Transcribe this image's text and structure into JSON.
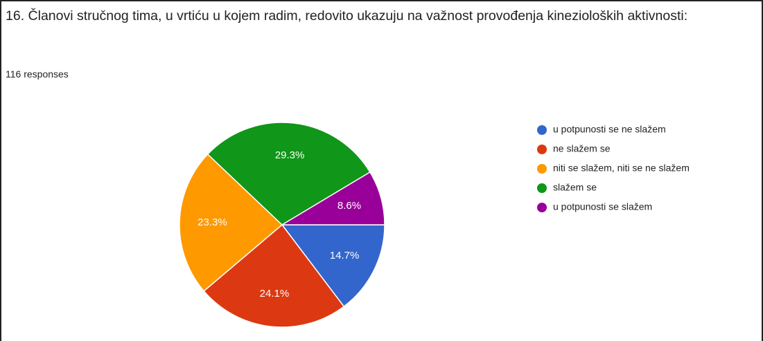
{
  "chart_data": {
    "type": "pie",
    "title": "16. Članovi stručnog tima, u vrtiću u kojem radim, redovito ukazuju na važnost provođenja kinezioloških aktivnosti:",
    "subtitle": "116 responses",
    "categories": [
      "u potpunosti se ne slažem",
      "ne slažem se",
      "niti se slažem, niti se ne slažem",
      "slažem se",
      "u potpunosti se slažem"
    ],
    "values": [
      14.7,
      24.1,
      23.3,
      29.3,
      8.6
    ],
    "value_labels": [
      "14.7%",
      "24.1%",
      "23.3%",
      "29.3%",
      "8.6%"
    ],
    "colors": [
      "#3366cc",
      "#dc3912",
      "#ff9900",
      "#109618",
      "#990099"
    ],
    "legend": "right"
  }
}
